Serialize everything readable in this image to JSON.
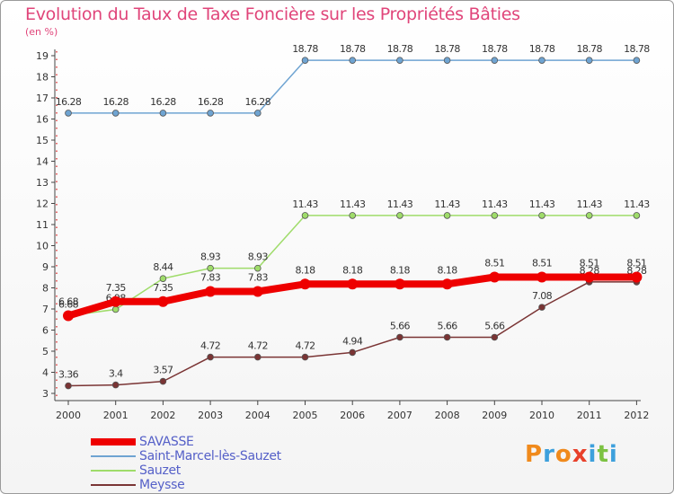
{
  "header": {
    "title": "Evolution du Taux de Taxe Foncière sur les Propriétés Bâties",
    "unit": "(en %)"
  },
  "logo": {
    "letters": [
      "P",
      "r",
      "o",
      "x",
      "i",
      "t",
      "i"
    ],
    "colors": [
      "#f08a1c",
      "#3da0dc",
      "#f08a1c",
      "#e8402a",
      "#3da0dc",
      "#7cc242",
      "#3da0dc"
    ]
  },
  "chart_data": {
    "type": "line",
    "x": [
      "2000",
      "2001",
      "2002",
      "2003",
      "2004",
      "2005",
      "2006",
      "2007",
      "2008",
      "2009",
      "2010",
      "2011",
      "2012"
    ],
    "ylim": [
      3,
      19
    ],
    "yticks": [
      3,
      4,
      5,
      6,
      7,
      8,
      9,
      10,
      11,
      12,
      13,
      14,
      15,
      16,
      17,
      18,
      19
    ],
    "grid": false,
    "legend_position": "bottom-left",
    "series": [
      {
        "name": "SAVASSE",
        "color": "#ee0000",
        "emphasis": true,
        "values": [
          6.68,
          7.35,
          7.35,
          7.83,
          7.83,
          8.18,
          8.18,
          8.18,
          8.18,
          8.51,
          8.51,
          8.51,
          8.51
        ],
        "labels": [
          "6.68",
          "7.35",
          "7.35",
          "7.83",
          "7.83",
          "8.18",
          "8.18",
          "8.18",
          "8.18",
          "8.51",
          "8.51",
          "8.51",
          "8.51"
        ]
      },
      {
        "name": "Saint-Marcel-lès-Sauzet",
        "color": "#6fa4d2",
        "values": [
          16.28,
          16.28,
          16.28,
          16.28,
          16.28,
          18.78,
          18.78,
          18.78,
          18.78,
          18.78,
          18.78,
          18.78,
          18.78
        ],
        "labels": [
          "16.28",
          "16.28",
          "16.28",
          "16.28",
          "16.28",
          "18.78",
          "18.78",
          "18.78",
          "18.78",
          "18.78",
          "18.78",
          "18.78",
          "18.78"
        ]
      },
      {
        "name": "Sauzet",
        "color": "#9fdc6a",
        "values": [
          6.68,
          6.98,
          8.44,
          8.93,
          8.93,
          11.43,
          11.43,
          11.43,
          11.43,
          11.43,
          11.43,
          11.43,
          11.43
        ],
        "labels": [
          "6.68",
          "6.98",
          "8.44",
          "8.93",
          "8.93",
          "11.43",
          "11.43",
          "11.43",
          "11.43",
          "11.43",
          "11.43",
          "11.43",
          "11.43"
        ]
      },
      {
        "name": "Meysse",
        "color": "#7a3434",
        "values": [
          3.36,
          3.4,
          3.57,
          4.72,
          4.72,
          4.72,
          4.94,
          5.66,
          5.66,
          5.66,
          7.08,
          8.28,
          8.28
        ],
        "labels": [
          "3.36",
          "3.4",
          "3.57",
          "4.72",
          "4.72",
          "4.72",
          "4.94",
          "5.66",
          "5.66",
          "5.66",
          "7.08",
          "8.28",
          "8.28"
        ]
      }
    ]
  }
}
